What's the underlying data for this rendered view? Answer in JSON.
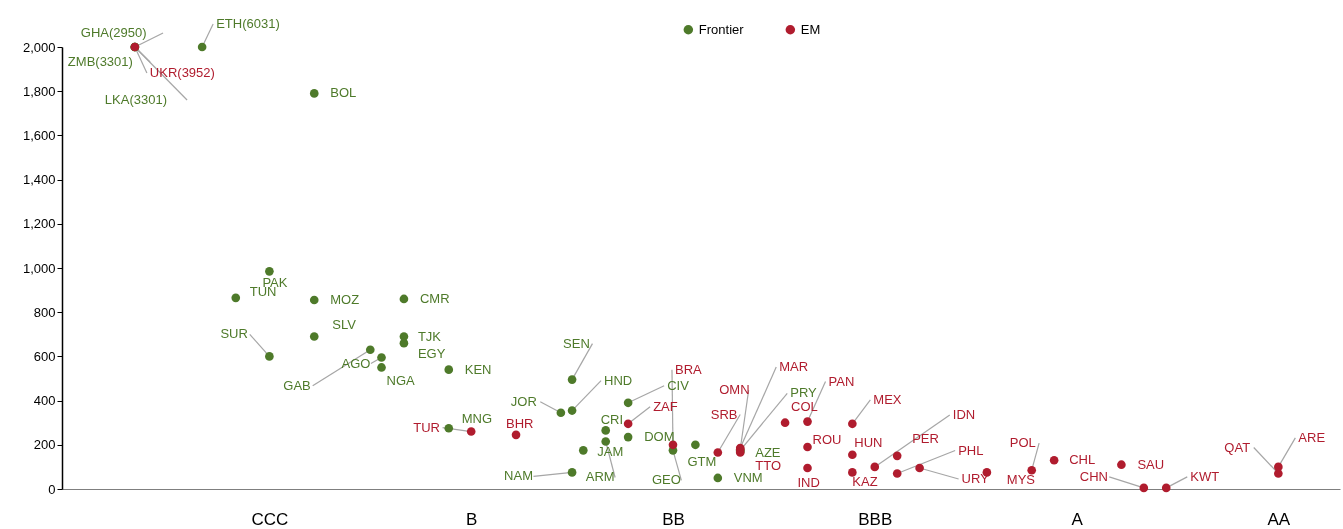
{
  "chart_data": {
    "type": "scatter",
    "categories": [
      null,
      null,
      null,
      null,
      null,
      null,
      null,
      null,
      null,
      null,
      null,
      null,
      null,
      null,
      null,
      null,
      null,
      null,
      "CCC",
      null,
      null,
      null,
      null,
      null,
      null,
      null,
      null,
      null,
      null,
      null,
      null,
      null,
      null,
      null,
      null,
      null,
      "B",
      null,
      null,
      null,
      null,
      null,
      null,
      null,
      null,
      null,
      null,
      null,
      null,
      null,
      null,
      null,
      null,
      null,
      "BB",
      null,
      null,
      null,
      null,
      null,
      null,
      null,
      null,
      null,
      null,
      null,
      null,
      null,
      null,
      null,
      null,
      null,
      "BBB",
      null,
      null,
      null,
      null,
      null,
      null,
      null,
      null,
      null,
      null,
      null,
      null,
      null,
      null,
      null,
      null,
      null,
      "A",
      null,
      null,
      null,
      null,
      null,
      null,
      null,
      null,
      null,
      null,
      null,
      null,
      null,
      null,
      null,
      null,
      null,
      "AA",
      null,
      null,
      null,
      null,
      null
    ],
    "ylim": [
      0,
      2000
    ],
    "yticks": [
      0,
      200,
      400,
      600,
      800,
      {
        "value": 1000,
        "label": "1,000"
      },
      {
        "value": 1200,
        "label": "1,200"
      },
      {
        "value": 1400,
        "label": "1,400"
      },
      {
        "value": 1600,
        "label": "1,600"
      },
      {
        "value": 1800,
        "label": "1,800"
      },
      {
        "value": 2000,
        "label": "2,000"
      }
    ],
    "grid": false,
    "legend": "top",
    "marker": "circle",
    "series": [
      {
        "name": "Frontier",
        "color": "#4e7a2a",
        "values": [
          null,
          null,
          null,
          null,
          null,
          null,
          2000,
          null,
          null,
          null,
          null,
          null,
          2000,
          null,
          null,
          865,
          null,
          null,
          985,
          null,
          null,
          null,
          1790,
          null,
          null,
          null,
          null,
          630,
          595,
          null,
          690,
          null,
          null,
          null,
          540,
          null,
          null,
          null,
          null,
          null,
          null,
          null,
          null,
          null,
          345,
          355,
          175,
          null,
          265,
          null,
          390,
          null,
          null,
          null,
          175,
          null,
          200,
          null,
          50,
          null,
          170,
          null,
          null,
          null,
          null,
          null,
          null,
          null,
          null,
          null,
          null,
          null,
          null,
          null,
          null,
          null,
          null,
          null,
          null,
          null,
          null,
          null,
          null,
          null,
          null,
          null,
          null,
          null,
          null,
          null,
          null,
          null,
          null,
          null,
          null,
          null,
          null,
          null,
          null,
          null,
          null,
          null,
          null,
          null,
          null,
          null,
          null,
          null,
          null,
          null,
          null,
          null,
          null,
          null
        ],
        "value_labels": [
          null,
          null,
          null,
          null,
          null,
          null,
          "GHA(2950)",
          null,
          null,
          null,
          null,
          null,
          "ETH(6031)",
          null,
          null,
          "TUN",
          null,
          null,
          "PAK",
          null,
          null,
          null,
          "BOL",
          null,
          null,
          null,
          null,
          "GAB",
          "AGO",
          null,
          "TJK",
          null,
          null,
          null,
          "KEN",
          null,
          null,
          null,
          null,
          null,
          null,
          null,
          null,
          null,
          "JOR",
          "HND",
          "JAM",
          null,
          "CRI",
          null,
          "CIV",
          null,
          null,
          null,
          "GEO",
          null,
          "GTM",
          null,
          "VNM",
          null,
          "AZE",
          null,
          null,
          null,
          null,
          null,
          null,
          null,
          null,
          null,
          null,
          null,
          null,
          null,
          null,
          null,
          null,
          null,
          null,
          null,
          null,
          null,
          null,
          null,
          null,
          null,
          null,
          null,
          null,
          null,
          null,
          null,
          null,
          null,
          null,
          null,
          null,
          null,
          null,
          null,
          null,
          null,
          null,
          null,
          null,
          null,
          null,
          null,
          null,
          null,
          null,
          null,
          null,
          null
        ]
      },
      {
        "color": "#4e7a2a",
        "values": [
          null,
          null,
          null,
          null,
          null,
          null,
          2000,
          null,
          null,
          null,
          null,
          null,
          null,
          null,
          null,
          null,
          null,
          null,
          600,
          null,
          null,
          null,
          855,
          null,
          null,
          null,
          null,
          null,
          550,
          null,
          660,
          null,
          null,
          null,
          275,
          null,
          null,
          null,
          null,
          null,
          null,
          null,
          null,
          null,
          null,
          495,
          null,
          null,
          215,
          null,
          235,
          null,
          null,
          null,
          null,
          null,
          null,
          null,
          null,
          null,
          175,
          null,
          null,
          null,
          null,
          null,
          null,
          null,
          null,
          null,
          null,
          null,
          null,
          null,
          null,
          null,
          null,
          null,
          null,
          null,
          null,
          null,
          null,
          null,
          null,
          null,
          null,
          null,
          null,
          null,
          null,
          null,
          null,
          null,
          null,
          null,
          null,
          null,
          null,
          null,
          null,
          null,
          null,
          null,
          null,
          null,
          null,
          null,
          null,
          null,
          null,
          null,
          null,
          null
        ],
        "value_labels": [
          null,
          null,
          null,
          null,
          null,
          null,
          "ZMB(3301)",
          null,
          null,
          null,
          null,
          null,
          null,
          null,
          null,
          null,
          null,
          null,
          "SUR",
          null,
          null,
          null,
          "MOZ",
          null,
          null,
          null,
          null,
          null,
          "NGA",
          null,
          "EGY",
          null,
          null,
          null,
          "MNG",
          null,
          null,
          null,
          null,
          null,
          null,
          null,
          null,
          null,
          null,
          "SEN",
          null,
          null,
          "ARM",
          null,
          "DOM",
          null,
          null,
          null,
          null,
          null,
          null,
          null,
          null,
          null,
          "PRY",
          null,
          null,
          null,
          null,
          null,
          null,
          null,
          null,
          null,
          null,
          null,
          null,
          null,
          null,
          null,
          null,
          null,
          null,
          null,
          null,
          null,
          null,
          null,
          null,
          null,
          null,
          null,
          null,
          null,
          null,
          null,
          null,
          null,
          null,
          null,
          null,
          null,
          null,
          null,
          null,
          null,
          null,
          null,
          null,
          null,
          null,
          null,
          null,
          null,
          null,
          null,
          null,
          null
        ]
      },
      {
        "color": "#4e7a2a",
        "values": [
          null,
          null,
          null,
          null,
          null,
          null,
          2000,
          null,
          null,
          null,
          null,
          null,
          null,
          null,
          null,
          null,
          null,
          null,
          null,
          null,
          null,
          null,
          690,
          null,
          null,
          null,
          null,
          null,
          null,
          null,
          860,
          null,
          null,
          null,
          null,
          null,
          null,
          null,
          null,
          null,
          null,
          null,
          null,
          null,
          null,
          75,
          null,
          null,
          null,
          null,
          null,
          null,
          null,
          null,
          null,
          null,
          null,
          null,
          null,
          null,
          null,
          null,
          null,
          null,
          null,
          null,
          null,
          null,
          null,
          null,
          null,
          null,
          null,
          null,
          null,
          null,
          null,
          null,
          null,
          null,
          null,
          null,
          null,
          null,
          null,
          null,
          null,
          null,
          null,
          null,
          null,
          null,
          null,
          null,
          null,
          null,
          null,
          null,
          null,
          null,
          null,
          null,
          null,
          null,
          null,
          null,
          null,
          null,
          null,
          null,
          null,
          null,
          null,
          null
        ],
        "value_labels": [
          null,
          null,
          null,
          null,
          null,
          null,
          "LKA(3301)",
          null,
          null,
          null,
          null,
          null,
          null,
          null,
          null,
          null,
          null,
          null,
          null,
          null,
          null,
          null,
          "SLV",
          null,
          null,
          null,
          null,
          null,
          null,
          null,
          "CMR",
          null,
          null,
          null,
          null,
          null,
          null,
          null,
          null,
          null,
          null,
          null,
          null,
          null,
          null,
          "NAM",
          null,
          null,
          null,
          null,
          null,
          null,
          null,
          null,
          null,
          null,
          null,
          null,
          null,
          null,
          null,
          null,
          null,
          null,
          null,
          null,
          null,
          null,
          null,
          null,
          null,
          null,
          null,
          null,
          null,
          null,
          null,
          null,
          null,
          null,
          null,
          null,
          null,
          null,
          null,
          null,
          null,
          null,
          null,
          null,
          null,
          null,
          null,
          null,
          null,
          null,
          null,
          null,
          null,
          null,
          null,
          null,
          null,
          null,
          null,
          null,
          null,
          null,
          null,
          null,
          null,
          null,
          null,
          null
        ]
      },
      {
        "name": "EM",
        "color": "#b01c2e",
        "values": [
          null,
          null,
          null,
          null,
          null,
          null,
          2000,
          null,
          null,
          null,
          null,
          null,
          null,
          null,
          null,
          null,
          null,
          null,
          null,
          null,
          null,
          null,
          null,
          null,
          null,
          null,
          null,
          null,
          null,
          null,
          null,
          null,
          null,
          null,
          null,
          null,
          260,
          null,
          null,
          null,
          245,
          null,
          null,
          null,
          null,
          null,
          null,
          null,
          null,
          null,
          295,
          null,
          null,
          null,
          200,
          null,
          null,
          null,
          165,
          null,
          185,
          null,
          null,
          null,
          300,
          null,
          305,
          null,
          null,
          null,
          295,
          null,
          100,
          null,
          150,
          null,
          95,
          null,
          null,
          null,
          null,
          null,
          75,
          null,
          null,
          null,
          85,
          null,
          130,
          null,
          null,
          null,
          null,
          null,
          110,
          null,
          5,
          null,
          5,
          null,
          null,
          null,
          null,
          null,
          null,
          null,
          null,
          null,
          70,
          null,
          null,
          null,
          null,
          null
        ],
        "value_labels": [
          null,
          null,
          null,
          null,
          null,
          null,
          "UKR(3952)",
          null,
          null,
          null,
          null,
          null,
          null,
          null,
          null,
          null,
          null,
          null,
          null,
          null,
          null,
          null,
          null,
          null,
          null,
          null,
          null,
          null,
          null,
          null,
          null,
          null,
          null,
          null,
          null,
          null,
          "TUR",
          null,
          null,
          null,
          "BHR",
          null,
          null,
          null,
          null,
          null,
          null,
          null,
          null,
          null,
          "ZAF",
          null,
          null,
          null,
          "BRA",
          null,
          null,
          null,
          "SRB",
          null,
          "MAR",
          null,
          null,
          null,
          "COL",
          null,
          "PAN",
          null,
          null,
          null,
          "MEX",
          null,
          "IDN",
          null,
          "PER",
          null,
          "URY",
          null,
          null,
          null,
          null,
          null,
          "MYS",
          null,
          null,
          null,
          "POL",
          null,
          "CHL",
          null,
          null,
          null,
          null,
          null,
          "SAU",
          null,
          "CHN",
          null,
          "KWT",
          null,
          null,
          null,
          null,
          null,
          null,
          null,
          null,
          null,
          "QAT",
          null,
          null,
          null,
          null,
          null
        ]
      },
      {
        "color": "#b01c2e",
        "values": [
          null,
          null,
          null,
          null,
          null,
          null,
          null,
          null,
          null,
          null,
          null,
          null,
          null,
          null,
          null,
          null,
          null,
          null,
          null,
          null,
          null,
          null,
          null,
          null,
          null,
          null,
          null,
          null,
          null,
          null,
          null,
          null,
          null,
          null,
          null,
          null,
          null,
          null,
          null,
          null,
          null,
          null,
          null,
          null,
          null,
          null,
          null,
          null,
          null,
          null,
          null,
          null,
          null,
          null,
          null,
          null,
          null,
          null,
          null,
          null,
          180,
          null,
          null,
          null,
          null,
          null,
          190,
          null,
          null,
          null,
          155,
          null,
          null,
          null,
          70,
          null,
          null,
          null,
          null,
          null,
          null,
          null,
          null,
          null,
          null,
          null,
          null,
          null,
          null,
          null,
          null,
          null,
          null,
          null,
          null,
          null,
          null,
          null,
          null,
          null,
          null,
          null,
          null,
          null,
          null,
          null,
          null,
          null,
          100,
          null,
          null,
          null,
          null,
          null
        ],
        "value_labels": [
          null,
          null,
          null,
          null,
          null,
          null,
          null,
          null,
          null,
          null,
          null,
          null,
          null,
          null,
          null,
          null,
          null,
          null,
          null,
          null,
          null,
          null,
          null,
          null,
          null,
          null,
          null,
          null,
          null,
          null,
          null,
          null,
          null,
          null,
          null,
          null,
          null,
          null,
          null,
          null,
          null,
          null,
          null,
          null,
          null,
          null,
          null,
          null,
          null,
          null,
          null,
          null,
          null,
          null,
          null,
          null,
          null,
          null,
          null,
          null,
          "OMN",
          null,
          null,
          null,
          null,
          null,
          "ROU",
          null,
          null,
          null,
          "HUN",
          null,
          null,
          null,
          "PHL",
          null,
          null,
          null,
          null,
          null,
          null,
          null,
          null,
          null,
          null,
          null,
          null,
          null,
          null,
          null,
          null,
          null,
          null,
          null,
          null,
          null,
          null,
          null,
          null,
          null,
          null,
          null,
          null,
          null,
          null,
          null,
          null,
          null,
          "ARE",
          null,
          null,
          null,
          null,
          null
        ]
      },
      {
        "color": "#b01c2e",
        "values": [
          null,
          null,
          null,
          null,
          null,
          null,
          null,
          null,
          null,
          null,
          null,
          null,
          null,
          null,
          null,
          null,
          null,
          null,
          null,
          null,
          null,
          null,
          null,
          null,
          null,
          null,
          null,
          null,
          null,
          null,
          null,
          null,
          null,
          null,
          null,
          null,
          null,
          null,
          null,
          null,
          null,
          null,
          null,
          null,
          null,
          null,
          null,
          null,
          null,
          null,
          null,
          null,
          null,
          null,
          null,
          null,
          null,
          null,
          null,
          null,
          165,
          null,
          null,
          null,
          null,
          null,
          95,
          null,
          null,
          null,
          75,
          null,
          null,
          null,
          null,
          null,
          null,
          null,
          null,
          null,
          null,
          null,
          null,
          null,
          null,
          null,
          null,
          null,
          null,
          null,
          null,
          null,
          null,
          null,
          null,
          null,
          null,
          null,
          null,
          null,
          null,
          null,
          null,
          null,
          null,
          null,
          null,
          null,
          null,
          null,
          null,
          null,
          null,
          null
        ],
        "value_labels": [
          null,
          null,
          null,
          null,
          null,
          null,
          null,
          null,
          null,
          null,
          null,
          null,
          null,
          null,
          null,
          null,
          null,
          null,
          null,
          null,
          null,
          null,
          null,
          null,
          null,
          null,
          null,
          null,
          null,
          null,
          null,
          null,
          null,
          null,
          null,
          null,
          null,
          null,
          null,
          null,
          null,
          null,
          null,
          null,
          null,
          null,
          null,
          null,
          null,
          null,
          null,
          null,
          null,
          null,
          null,
          null,
          null,
          null,
          null,
          null,
          "TTO",
          null,
          null,
          null,
          null,
          null,
          "IND",
          null,
          null,
          null,
          "KAZ",
          null,
          null,
          null,
          null,
          null,
          null,
          null,
          null,
          null,
          null,
          null,
          null,
          null,
          null,
          null,
          null,
          null,
          null,
          null,
          null,
          null,
          null,
          null,
          null,
          null,
          null,
          null,
          null,
          null,
          null,
          null,
          null,
          null,
          null,
          null,
          null,
          null,
          null,
          null,
          null,
          null,
          null,
          null
        ]
      }
    ]
  }
}
